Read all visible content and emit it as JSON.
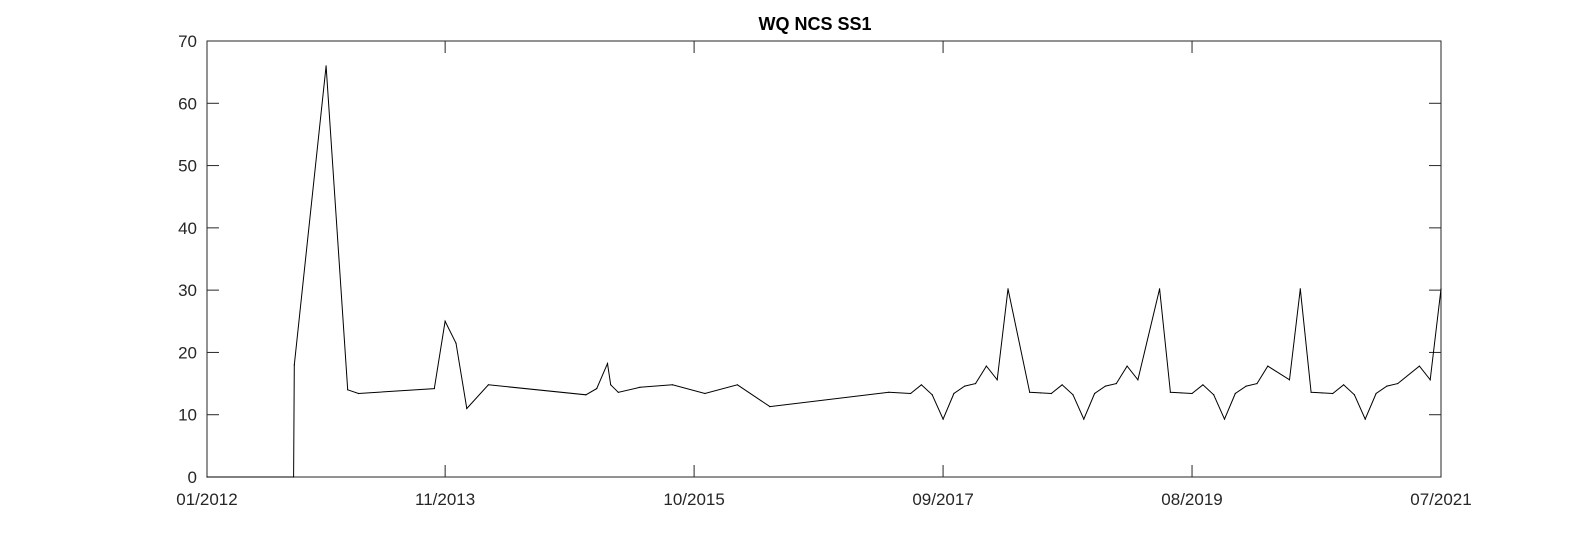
{
  "chart_data": {
    "type": "line",
    "title": "WQ NCS SS1",
    "xlabel": "",
    "ylabel": "",
    "ylim": [
      0,
      70
    ],
    "xlim": [
      "2012-01",
      "2021-07"
    ],
    "y_ticks": [
      0,
      10,
      20,
      30,
      40,
      50,
      60,
      70
    ],
    "x_ticks": [
      "01/2012",
      "11/2013",
      "10/2015",
      "09/2017",
      "08/2019",
      "07/2021"
    ],
    "grid": false,
    "colors": {
      "line": "#000000",
      "axes": "#262626",
      "background": "#ffffff"
    },
    "series": [
      {
        "x": [
          "2012-01-01",
          "2012-09-01",
          "2012-09-03",
          "2012-12-01",
          "2013-02-01",
          "2013-03-01",
          "2013-10-01",
          "2013-11-01",
          "2013-12-01",
          "2014-01-01",
          "2014-03-01",
          "2014-12-01",
          "2015-01-01",
          "2015-02-01",
          "2015-02-10",
          "2015-03-01",
          "2015-05-01",
          "2015-08-01",
          "2015-11-01",
          "2016-02-01",
          "2016-05-01",
          "2017-04-01",
          "2017-06-01",
          "2017-07-01",
          "2017-08-01",
          "2017-09-01",
          "2017-10-01",
          "2017-11-01",
          "2017-12-01",
          "2018-01-01",
          "2018-02-01",
          "2018-03-01",
          "2018-05-01",
          "2018-06-01",
          "2018-07-01",
          "2018-08-01",
          "2018-09-01",
          "2018-10-01",
          "2018-11-01",
          "2018-12-01",
          "2019-01-01",
          "2019-02-01",
          "2019-03-01",
          "2019-05-01",
          "2019-06-01",
          "2019-07-01",
          "2019-08-01",
          "2019-09-01",
          "2019-10-01",
          "2019-11-01",
          "2019-12-01",
          "2020-01-01",
          "2020-02-01",
          "2020-03-01",
          "2020-05-01",
          "2020-06-01",
          "2020-07-01",
          "2020-08-01",
          "2020-09-01",
          "2020-10-01",
          "2020-11-01",
          "2020-12-01",
          "2021-01-01",
          "2021-02-01",
          "2021-03-01",
          "2021-05-01",
          "2021-06-01",
          "2021-07-01"
        ],
        "y": [
          0,
          0,
          18,
          66,
          14,
          13.4,
          14.2,
          25,
          21.5,
          11,
          14.8,
          13.2,
          14.2,
          18.2,
          14.8,
          13.6,
          14.4,
          14.8,
          13.4,
          14.8,
          11.3,
          13.6,
          13.4,
          14.8,
          13.2,
          9.3,
          13.4,
          14.6,
          15,
          17.8,
          15.6,
          30.2,
          13.6,
          13.5,
          13.4,
          14.8,
          13.2,
          9.3,
          13.4,
          14.6,
          15,
          17.8,
          15.6,
          30.2,
          13.6,
          13.5,
          13.4,
          14.8,
          13.2,
          9.3,
          13.4,
          14.6,
          15,
          17.8,
          15.6,
          30.2,
          13.6,
          13.5,
          13.4,
          14.8,
          13.2,
          9.3,
          13.4,
          14.6,
          15,
          17.8,
          15.6,
          30.2
        ]
      }
    ]
  }
}
